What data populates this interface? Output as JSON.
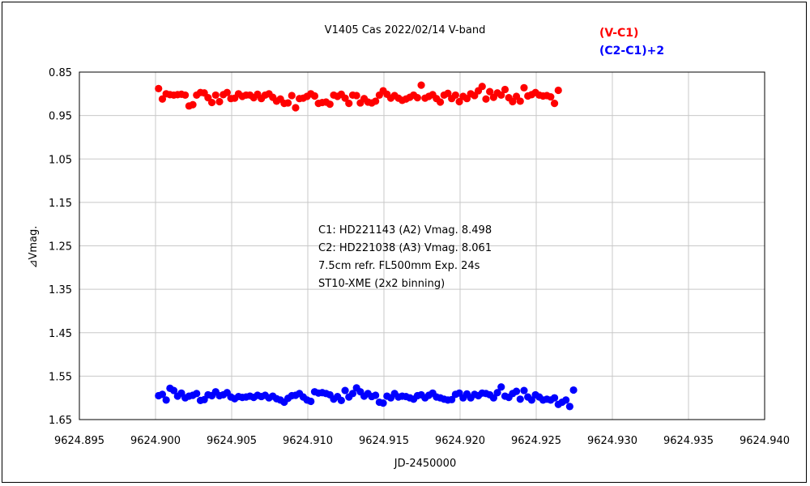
{
  "chart_data": {
    "type": "scatter",
    "title": "V1405 Cas 2022/02/14 V-band",
    "xlabel": "JD-2450000",
    "ylabel": "⊿Vmag.",
    "xlim": [
      9624.895,
      9624.94
    ],
    "ylim": [
      0.85,
      1.65
    ],
    "y_inverted": true,
    "grid": true,
    "legend_position": "top-right",
    "x_ticks": [
      "9624.895",
      "9624.900",
      "9624.905",
      "9624.910",
      "9624.915",
      "9624.920",
      "9624.925",
      "9624.930",
      "9624.935",
      "9624.940"
    ],
    "y_ticks": [
      "0.85",
      "0.95",
      "1.05",
      "1.15",
      "1.25",
      "1.35",
      "1.45",
      "1.55",
      "1.65"
    ],
    "annotations": [
      "C1: HD221143 (A2) Vmag. 8.498",
      "C2: HD221038 (A3) Vmag. 8.061",
      "7.5cm refr. FL500mm Exp. 24s",
      "ST10-XME (2x2 binning)"
    ],
    "series": [
      {
        "name": "(V-C1)",
        "color": "#ff0000",
        "x_start": 9624.9002,
        "x_step": 0.00025,
        "y": [
          0.888,
          0.912,
          0.9,
          0.902,
          0.903,
          0.902,
          0.901,
          0.903,
          0.928,
          0.925,
          0.903,
          0.897,
          0.898,
          0.909,
          0.92,
          0.903,
          0.918,
          0.902,
          0.897,
          0.911,
          0.91,
          0.9,
          0.906,
          0.903,
          0.903,
          0.909,
          0.901,
          0.911,
          0.903,
          0.9,
          0.908,
          0.917,
          0.912,
          0.922,
          0.921,
          0.904,
          0.932,
          0.911,
          0.91,
          0.906,
          0.9,
          0.905,
          0.922,
          0.92,
          0.919,
          0.924,
          0.903,
          0.906,
          0.901,
          0.91,
          0.922,
          0.903,
          0.904,
          0.921,
          0.911,
          0.919,
          0.921,
          0.917,
          0.903,
          0.893,
          0.901,
          0.91,
          0.904,
          0.91,
          0.915,
          0.912,
          0.908,
          0.903,
          0.909,
          0.88,
          0.91,
          0.906,
          0.902,
          0.911,
          0.919,
          0.903,
          0.899,
          0.911,
          0.903,
          0.918,
          0.906,
          0.911,
          0.9,
          0.904,
          0.893,
          0.883,
          0.912,
          0.895,
          0.908,
          0.898,
          0.903,
          0.89,
          0.909,
          0.918,
          0.906,
          0.917,
          0.886,
          0.905,
          0.902,
          0.897,
          0.903,
          0.905,
          0.904,
          0.907,
          0.922,
          0.892
        ]
      },
      {
        "name": "(C2-C1)+2",
        "color": "#0000ff",
        "x_start": 9624.9002,
        "x_step": 0.00025,
        "y": [
          1.595,
          1.592,
          1.605,
          1.578,
          1.583,
          1.596,
          1.589,
          1.6,
          1.596,
          1.594,
          1.59,
          1.606,
          1.604,
          1.593,
          1.595,
          1.586,
          1.595,
          1.593,
          1.588,
          1.598,
          1.602,
          1.597,
          1.599,
          1.598,
          1.596,
          1.599,
          1.594,
          1.597,
          1.594,
          1.6,
          1.596,
          1.602,
          1.605,
          1.61,
          1.601,
          1.595,
          1.594,
          1.59,
          1.598,
          1.605,
          1.608,
          1.586,
          1.589,
          1.588,
          1.59,
          1.593,
          1.603,
          1.597,
          1.606,
          1.583,
          1.598,
          1.59,
          1.577,
          1.586,
          1.596,
          1.59,
          1.597,
          1.594,
          1.61,
          1.612,
          1.596,
          1.6,
          1.59,
          1.598,
          1.596,
          1.597,
          1.6,
          1.603,
          1.595,
          1.593,
          1.6,
          1.594,
          1.589,
          1.598,
          1.6,
          1.603,
          1.605,
          1.604,
          1.592,
          1.589,
          1.6,
          1.591,
          1.6,
          1.592,
          1.595,
          1.589,
          1.59,
          1.593,
          1.6,
          1.588,
          1.575,
          1.596,
          1.599,
          1.59,
          1.585,
          1.603,
          1.583,
          1.598,
          1.605,
          1.593,
          1.598,
          1.605,
          1.603,
          1.605,
          1.6,
          1.615,
          1.61,
          1.605,
          1.62,
          1.582
        ]
      }
    ]
  }
}
